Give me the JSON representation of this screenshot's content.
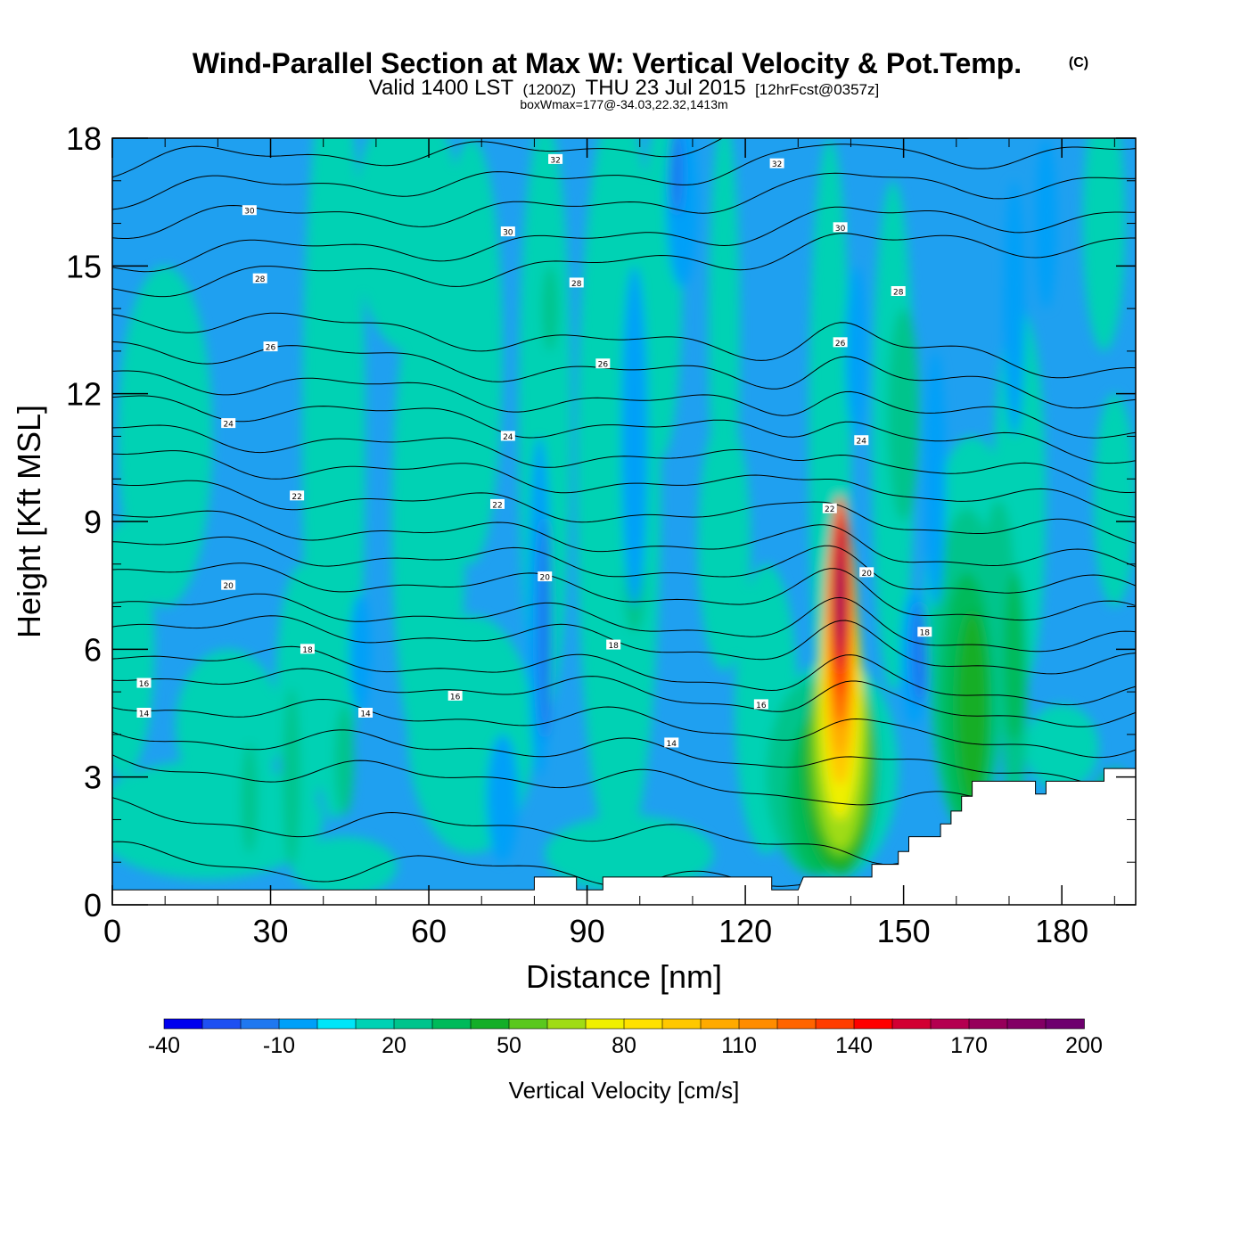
{
  "chart_data": {
    "type": "heatmap",
    "title": "Wind-Parallel Section at Max W: Vertical Velocity & Pot.Temp.",
    "title_mark": "(C)",
    "subtitle": {
      "valid_main": "Valid 1400 LST",
      "valid_zulu": "(1200Z)",
      "valid_date": "THU 23 Jul 2015",
      "forecast": "[12hrFcst@0357z]",
      "box_info": "boxWmax=177@-34.03,22.32,1413m"
    },
    "xlabel": "Distance [nm]",
    "ylabel": "Height [Kft MSL]",
    "xlim": [
      0,
      194
    ],
    "ylim": [
      0,
      18
    ],
    "x_ticks": [
      0,
      30,
      60,
      90,
      120,
      150,
      180
    ],
    "x_tick_labels": [
      "0",
      "30",
      "60",
      "90",
      "120",
      "150",
      "180"
    ],
    "y_ticks": [
      0,
      3,
      6,
      9,
      12,
      15,
      18
    ],
    "y_tick_labels": [
      "0",
      "3",
      "6",
      "9",
      "12",
      "15",
      "18"
    ],
    "colorbar": {
      "title": "Vertical Velocity [cm/s]",
      "min": -40,
      "max": 200,
      "step": 10,
      "labels": [
        "-40",
        "-10",
        "20",
        "50",
        "80",
        "110",
        "140",
        "170",
        "200"
      ],
      "colors": [
        "#0000ee",
        "#1e50f2",
        "#1f78f0",
        "#00a0f8",
        "#00e6f8",
        "#00d2b4",
        "#00c48c",
        "#00ba5a",
        "#14ae28",
        "#5ac81e",
        "#a0dc14",
        "#f0f000",
        "#ffe100",
        "#ffc800",
        "#ffaa00",
        "#ff8c00",
        "#ff6400",
        "#ff3c00",
        "#ff0000",
        "#d20032",
        "#b40050",
        "#96005a",
        "#820064",
        "#6e006e"
      ]
    },
    "w_max": {
      "distance_nm": 138,
      "height_kft": 6.8,
      "value_cm_s": 177
    },
    "theta_contours_c": [
      12,
      13,
      14,
      15,
      16,
      17,
      18,
      19,
      20,
      21,
      22,
      23,
      24,
      25,
      26,
      27,
      28,
      29,
      30,
      31,
      32,
      33
    ],
    "theta_contour_labels": [
      {
        "text": "32",
        "x": 84,
        "y": 17.5
      },
      {
        "text": "32",
        "x": 126,
        "y": 17.4
      },
      {
        "text": "30",
        "x": 26,
        "y": 16.3
      },
      {
        "text": "30",
        "x": 75,
        "y": 15.8
      },
      {
        "text": "30",
        "x": 138,
        "y": 15.9
      },
      {
        "text": "28",
        "x": 28,
        "y": 14.7
      },
      {
        "text": "28",
        "x": 88,
        "y": 14.6
      },
      {
        "text": "28",
        "x": 149,
        "y": 14.4
      },
      {
        "text": "26",
        "x": 30,
        "y": 13.1
      },
      {
        "text": "26",
        "x": 93,
        "y": 12.7
      },
      {
        "text": "26",
        "x": 138,
        "y": 13.2
      },
      {
        "text": "24",
        "x": 22,
        "y": 11.3
      },
      {
        "text": "24",
        "x": 75,
        "y": 11.0
      },
      {
        "text": "24",
        "x": 142,
        "y": 10.9
      },
      {
        "text": "22",
        "x": 35,
        "y": 9.6
      },
      {
        "text": "22",
        "x": 73,
        "y": 9.4
      },
      {
        "text": "22",
        "x": 136,
        "y": 9.3
      },
      {
        "text": "20",
        "x": 22,
        "y": 7.5
      },
      {
        "text": "20",
        "x": 82,
        "y": 7.7
      },
      {
        "text": "20",
        "x": 143,
        "y": 7.8
      },
      {
        "text": "18",
        "x": 37,
        "y": 6.0
      },
      {
        "text": "18",
        "x": 95,
        "y": 6.1
      },
      {
        "text": "18",
        "x": 154,
        "y": 6.4
      },
      {
        "text": "16",
        "x": 6,
        "y": 5.2
      },
      {
        "text": "16",
        "x": 65,
        "y": 4.9
      },
      {
        "text": "16",
        "x": 123,
        "y": 4.7
      },
      {
        "text": "14",
        "x": 6,
        "y": 4.5
      },
      {
        "text": "14",
        "x": 48,
        "y": 4.5
      },
      {
        "text": "14",
        "x": 106,
        "y": 3.8
      }
    ],
    "terrain_kft": [
      [
        0,
        0.35
      ],
      [
        80,
        0.35
      ],
      [
        80,
        0.65
      ],
      [
        88,
        0.65
      ],
      [
        88,
        0.35
      ],
      [
        93,
        0.35
      ],
      [
        93,
        0.65
      ],
      [
        125,
        0.65
      ],
      [
        125,
        0.35
      ],
      [
        130,
        0.35
      ],
      [
        131,
        0.65
      ],
      [
        136,
        0.65
      ],
      [
        136,
        0.65
      ],
      [
        140,
        0.65
      ],
      [
        142,
        0.65
      ],
      [
        144,
        0.65
      ],
      [
        144,
        0.95
      ],
      [
        149,
        0.95
      ],
      [
        149,
        1.25
      ],
      [
        151,
        1.25
      ],
      [
        151,
        1.6
      ],
      [
        157,
        1.6
      ],
      [
        157,
        1.9
      ],
      [
        159,
        1.9
      ],
      [
        159,
        2.2
      ],
      [
        161,
        2.2
      ],
      [
        161,
        2.55
      ],
      [
        163,
        2.55
      ],
      [
        163,
        2.9
      ],
      [
        175,
        2.9
      ],
      [
        175,
        2.6
      ],
      [
        177,
        2.6
      ],
      [
        177,
        2.9
      ],
      [
        188,
        2.9
      ],
      [
        188,
        3.2
      ],
      [
        194,
        3.2
      ],
      [
        194,
        0
      ]
    ]
  }
}
